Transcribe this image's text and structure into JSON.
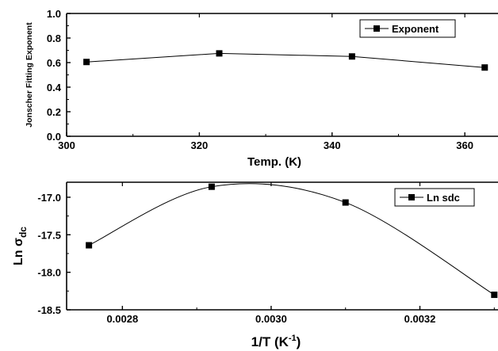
{
  "chart_data": [
    {
      "type": "line",
      "xlabel": "Temp. (K)",
      "ylabel": "Jonscher Fitting Exponent",
      "xlim": [
        300,
        365
      ],
      "ylim": [
        0.0,
        1.0
      ],
      "xticks": [
        "300",
        "320",
        "340",
        "360"
      ],
      "yticks": [
        "0.0",
        "0.2",
        "0.4",
        "0.6",
        "0.8",
        "1.0"
      ],
      "legend_position": "top-right",
      "series": [
        {
          "name": "Exponent",
          "x": [
            303,
            323,
            343,
            363
          ],
          "y": [
            0.605,
            0.675,
            0.65,
            0.56
          ]
        }
      ]
    },
    {
      "type": "line",
      "xlabel": "1/T (K",
      "xlabel_sup": "-1",
      "xlabel_suffix": ")",
      "ylabel": "Ln σ",
      "ylabel_sub": "dc",
      "xlim": [
        0.002725,
        0.003305
      ],
      "ylim": [
        -18.5,
        -16.8
      ],
      "xticks": [
        "0.0028",
        "0.0030",
        "0.0032"
      ],
      "yticks": [
        "-17.0",
        "-17.5",
        "-18.0",
        "-18.5"
      ],
      "legend_position": "top-right",
      "series": [
        {
          "name": "Ln sdc",
          "x": [
            0.002755,
            0.00292,
            0.0031,
            0.0033
          ],
          "y": [
            -17.64,
            -16.86,
            -17.07,
            -18.3
          ]
        }
      ]
    }
  ]
}
